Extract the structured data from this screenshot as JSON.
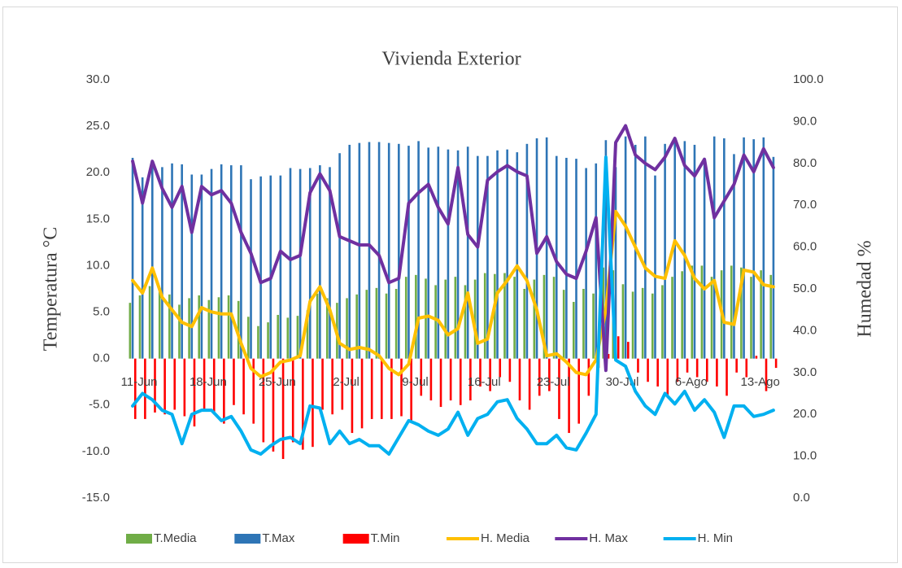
{
  "chart_data": {
    "type": "combo",
    "title": "Vivienda Exterior",
    "y_label": "Temperatura °C",
    "y2_label": "Humedad %",
    "categories": [
      "11-Jun",
      null,
      null,
      null,
      null,
      null,
      null,
      "18-Jun",
      null,
      null,
      null,
      null,
      null,
      null,
      "25-Jun",
      null,
      null,
      null,
      null,
      null,
      null,
      "2-Jul",
      null,
      null,
      null,
      null,
      null,
      null,
      "9-Jul",
      null,
      null,
      null,
      null,
      null,
      null,
      "16-Jul",
      null,
      null,
      null,
      null,
      null,
      null,
      "23-Jul",
      null,
      null,
      null,
      null,
      null,
      null,
      "30-Jul",
      null,
      null,
      null,
      null,
      null,
      null,
      "6-Ago",
      null,
      null,
      null,
      null,
      null,
      null,
      "13-Ago",
      null,
      null
    ],
    "ylim": [
      -15,
      30
    ],
    "yticks": [
      {
        "value": -15,
        "label": "-15.0"
      },
      {
        "value": -10,
        "label": "-10.0"
      },
      {
        "value": -5,
        "label": "-5.0"
      },
      {
        "value": 0,
        "label": "0.0"
      },
      {
        "value": 5,
        "label": "5.0"
      },
      {
        "value": 10,
        "label": "10.0"
      },
      {
        "value": 15,
        "label": "15.0"
      },
      {
        "value": 20,
        "label": "20.0"
      },
      {
        "value": 25,
        "label": "25.0"
      },
      {
        "value": 30,
        "label": "30.0"
      }
    ],
    "y2lim": [
      0,
      100
    ],
    "y2ticks": [
      {
        "value": 0,
        "label": "0.0"
      },
      {
        "value": 10,
        "label": "10.0"
      },
      {
        "value": 20,
        "label": "20.0"
      },
      {
        "value": 30,
        "label": "30.0"
      },
      {
        "value": 40,
        "label": "40.0"
      },
      {
        "value": 50,
        "label": "50.0"
      },
      {
        "value": 60,
        "label": "60.0"
      },
      {
        "value": 70,
        "label": "70.0"
      },
      {
        "value": 80,
        "label": "80.0"
      },
      {
        "value": 90,
        "label": "90.0"
      },
      {
        "value": 100,
        "label": "100.0"
      }
    ],
    "legend": "bottom",
    "series": [
      {
        "name": "T.Media",
        "kind": "bar",
        "color": "#70ad47",
        "values": [
          6.0,
          6.8,
          7.8,
          7.6,
          6.9,
          5.8,
          6.5,
          6.8,
          6.3,
          6.6,
          6.8,
          6.2,
          4.5,
          3.5,
          3.9,
          4.7,
          4.4,
          4.6,
          5.2,
          7.0,
          6.5,
          6.0,
          6.5,
          6.9,
          7.4,
          7.6,
          7.0,
          7.5,
          8.8,
          9.0,
          8.6,
          7.9,
          8.5,
          8.8,
          7.9,
          8.5,
          9.2,
          9.1,
          9.2,
          8.8,
          7.5,
          8.5,
          9.0,
          8.8,
          7.4,
          6.1,
          7.5,
          7.0,
          9.8,
          9.5,
          8.0,
          7.2,
          7.6,
          7.0,
          7.9,
          8.8,
          9.4,
          10.0,
          10.0,
          8.8,
          9.5,
          10.0,
          9.8,
          8.8,
          9.5,
          9.0
        ]
      },
      {
        "name": "T.Max",
        "kind": "bar",
        "color": "#2e75b6",
        "values": [
          21.6,
          19.5,
          21.2,
          20.6,
          21.0,
          20.9,
          19.8,
          19.8,
          20.4,
          20.9,
          20.8,
          20.8,
          19.3,
          19.6,
          19.7,
          19.7,
          20.5,
          20.4,
          20.5,
          20.8,
          20.6,
          22.1,
          23.0,
          23.2,
          23.3,
          23.3,
          23.2,
          23.1,
          22.9,
          23.4,
          22.7,
          22.8,
          22.5,
          22.4,
          22.8,
          21.8,
          21.8,
          22.4,
          22.5,
          22.2,
          23.1,
          23.7,
          23.8,
          21.8,
          21.6,
          21.5,
          20.5,
          21.0,
          23.5,
          20.6,
          23.9,
          23.0,
          23.9,
          19.7,
          23.1,
          23.8,
          23.4,
          23.0,
          21.6,
          23.9,
          23.7,
          22.0,
          23.8,
          23.6,
          23.8,
          21.7
        ]
      },
      {
        "name": "T.Min",
        "kind": "bar",
        "color": "#ff0000",
        "values": [
          -6.5,
          -6.5,
          -5.8,
          -6,
          -5.5,
          -6.2,
          -7.3,
          -5.5,
          -6,
          -7,
          -5,
          -6,
          -7,
          -9,
          -10,
          -10.8,
          -9,
          -9.8,
          -9.5,
          -5.5,
          -6,
          -5.5,
          -8,
          -7.5,
          -6.5,
          -6.5,
          -6.5,
          -6.2,
          -6.8,
          -4,
          -4.5,
          -5.2,
          -4.5,
          -5,
          -4.5,
          -3,
          -3.5,
          -2,
          -2.5,
          -4.5,
          -5.5,
          -4,
          -3.5,
          -6.5,
          -8,
          -7,
          -4,
          -1,
          0.5,
          2.4,
          1.8,
          -1.5,
          -2.5,
          -3,
          -4,
          -2.5,
          -1.5,
          -2,
          -2.5,
          -3,
          -4,
          -1.5,
          -2,
          0.3,
          -3.5,
          -1
        ]
      },
      {
        "name": "H. Media",
        "kind": "line",
        "axis": "y2",
        "color": "#ffc000",
        "values": [
          52,
          49,
          55,
          48,
          45,
          42,
          41,
          45.5,
          44.5,
          44,
          44,
          37,
          31,
          29,
          30,
          32.5,
          33,
          34,
          47,
          50.5,
          45,
          37,
          35.5,
          36,
          35.5,
          34,
          31,
          29.5,
          32,
          43,
          43.5,
          42.5,
          39,
          40.5,
          49,
          37,
          38,
          49,
          52,
          55.5,
          52,
          45,
          34,
          34.5,
          32.5,
          30,
          29.5,
          33,
          45,
          68.5,
          65,
          60,
          55,
          53,
          52.5,
          61.5,
          58,
          52.5,
          50,
          52,
          42,
          41.5,
          54.5,
          54,
          51,
          50.5
        ]
      },
      {
        "name": "H. Max",
        "kind": "line",
        "axis": "y2",
        "color": "#7030a0",
        "values": [
          80.5,
          70.5,
          80.5,
          74,
          69.5,
          74.5,
          63.5,
          74.5,
          72.5,
          73.5,
          70.5,
          63.5,
          58.5,
          51.5,
          52.5,
          59,
          57,
          58,
          73,
          77.5,
          73.5,
          62.5,
          61.5,
          60.5,
          60.5,
          58,
          51.5,
          52.5,
          70.5,
          73,
          75,
          69.5,
          65.5,
          79,
          63,
          60,
          76,
          78,
          79.5,
          78,
          77,
          58.5,
          62.5,
          56.5,
          53.5,
          52.5,
          59,
          67,
          30.5,
          85,
          89,
          82,
          80,
          78.5,
          81.5,
          86,
          79.5,
          77,
          81,
          67,
          71,
          75,
          82,
          78,
          83.5,
          79
        ]
      },
      {
        "name": "H. Min",
        "kind": "line",
        "axis": "y2",
        "color": "#00b0f0",
        "values": [
          22,
          25,
          23.5,
          21,
          20,
          13,
          20,
          21,
          21,
          18.5,
          19.5,
          16,
          11.5,
          10.5,
          12.5,
          14,
          14.5,
          13,
          22,
          21.5,
          13,
          16,
          13,
          14,
          12.5,
          12.5,
          10.5,
          14.5,
          18.5,
          17.5,
          16,
          15,
          16.5,
          20.5,
          15,
          19,
          20,
          23,
          23.5,
          19,
          16.5,
          13,
          13,
          15,
          12,
          11.5,
          15.5,
          20,
          81.5,
          33,
          31.5,
          25.5,
          22,
          20,
          25,
          22.5,
          25.5,
          21,
          23.5,
          20.5,
          14.5,
          22,
          22,
          19.5,
          20,
          21
        ]
      }
    ]
  }
}
